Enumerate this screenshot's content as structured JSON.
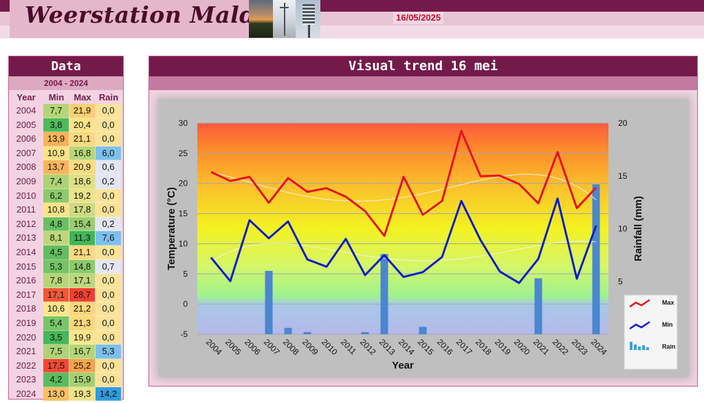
{
  "header": {
    "site_title": "Weerstation Malderen",
    "date": "16/05/2025"
  },
  "table": {
    "title": "Data",
    "period": "2004 - 2024",
    "columns": [
      "Year",
      "Min",
      "Max",
      "Rain"
    ],
    "rows": [
      {
        "year": "2004",
        "min": "7,7",
        "max": "21,9",
        "rain": "0,0"
      },
      {
        "year": "2005",
        "min": "3,8",
        "max": "20,4",
        "rain": "0,0"
      },
      {
        "year": "2006",
        "min": "13,9",
        "max": "21,1",
        "rain": "0,0"
      },
      {
        "year": "2007",
        "min": "10,9",
        "max": "16,8",
        "rain": "6,0"
      },
      {
        "year": "2008",
        "min": "13,7",
        "max": "20,9",
        "rain": "0,6"
      },
      {
        "year": "2009",
        "min": "7,4",
        "max": "18,6",
        "rain": "0,2"
      },
      {
        "year": "2010",
        "min": "6,2",
        "max": "19,2",
        "rain": "0,0"
      },
      {
        "year": "2011",
        "min": "10,8",
        "max": "17,8",
        "rain": "0,0"
      },
      {
        "year": "2012",
        "min": "4,8",
        "max": "15,4",
        "rain": "0,2"
      },
      {
        "year": "2013",
        "min": "8,1",
        "max": "11,3",
        "rain": "7,6"
      },
      {
        "year": "2014",
        "min": "4,5",
        "max": "21,1",
        "rain": "0,0"
      },
      {
        "year": "2015",
        "min": "5,3",
        "max": "14,8",
        "rain": "0,7"
      },
      {
        "year": "2016",
        "min": "7,8",
        "max": "17,1",
        "rain": "0,0"
      },
      {
        "year": "2017",
        "min": "17,1",
        "max": "28,7",
        "rain": "0,0"
      },
      {
        "year": "2018",
        "min": "10,6",
        "max": "21,2",
        "rain": "0,0"
      },
      {
        "year": "2019",
        "min": "5,4",
        "max": "21,3",
        "rain": "0,0"
      },
      {
        "year": "2020",
        "min": "3,5",
        "max": "19,9",
        "rain": "0,0"
      },
      {
        "year": "2021",
        "min": "7,5",
        "max": "16,7",
        "rain": "5,3"
      },
      {
        "year": "2022",
        "min": "17,5",
        "max": "25,2",
        "rain": "0,0"
      },
      {
        "year": "2023",
        "min": "4,2",
        "max": "15,9",
        "rain": "0,0"
      },
      {
        "year": "2024",
        "min": "13,0",
        "max": "19,3",
        "rain": "14,2"
      }
    ]
  },
  "chart_panel": {
    "title": "Visual trend 16 mei"
  },
  "colors": {
    "brand_dark": "#741a4a",
    "max_line": "#e8121b",
    "min_line": "#0c1fc8",
    "rain_bar": "#4a86d1"
  },
  "chart_data": {
    "type": "line",
    "categories": [
      "2004",
      "2005",
      "2006",
      "2007",
      "2008",
      "2009",
      "2010",
      "2011",
      "2012",
      "2013",
      "2014",
      "2015",
      "2016",
      "2017",
      "2018",
      "2019",
      "2020",
      "2021",
      "2022",
      "2023",
      "2024"
    ],
    "series": [
      {
        "name": "Max",
        "type": "line",
        "axis": "left",
        "values": [
          21.9,
          20.4,
          21.1,
          16.8,
          20.9,
          18.6,
          19.2,
          17.8,
          15.4,
          11.3,
          21.1,
          14.8,
          17.1,
          28.7,
          21.2,
          21.3,
          19.9,
          16.7,
          25.2,
          15.9,
          19.3
        ]
      },
      {
        "name": "Min",
        "type": "line",
        "axis": "left",
        "values": [
          7.7,
          3.8,
          13.9,
          10.9,
          13.7,
          7.4,
          6.2,
          10.8,
          4.8,
          8.1,
          4.5,
          5.3,
          7.8,
          17.1,
          10.6,
          5.4,
          3.5,
          7.5,
          17.5,
          4.2,
          13.0
        ]
      },
      {
        "name": "Rain",
        "type": "bar",
        "axis": "right",
        "values": [
          0.0,
          0.0,
          0.0,
          6.0,
          0.6,
          0.2,
          0.0,
          0.0,
          0.2,
          7.6,
          0.0,
          0.7,
          0.0,
          0.0,
          0.0,
          0.0,
          0.0,
          5.3,
          0.0,
          0.0,
          14.2
        ]
      }
    ],
    "xlabel": "Year",
    "ylabel": "Temperature (°C)",
    "y2label": "Rainfall (mm)",
    "ylim": [
      -5,
      30
    ],
    "y2lim": [
      0,
      20
    ],
    "yticks": [
      -5,
      0,
      5,
      10,
      15,
      20,
      25,
      30
    ],
    "y2ticks": [
      5,
      10,
      15,
      20
    ],
    "trendlines": true,
    "grid": true,
    "legend_position": "right",
    "legend": [
      {
        "label": "Max",
        "icon": "red-zigzag"
      },
      {
        "label": "Min",
        "icon": "blue-zigzag"
      },
      {
        "label": "Rain",
        "icon": "blue-bars"
      }
    ]
  }
}
